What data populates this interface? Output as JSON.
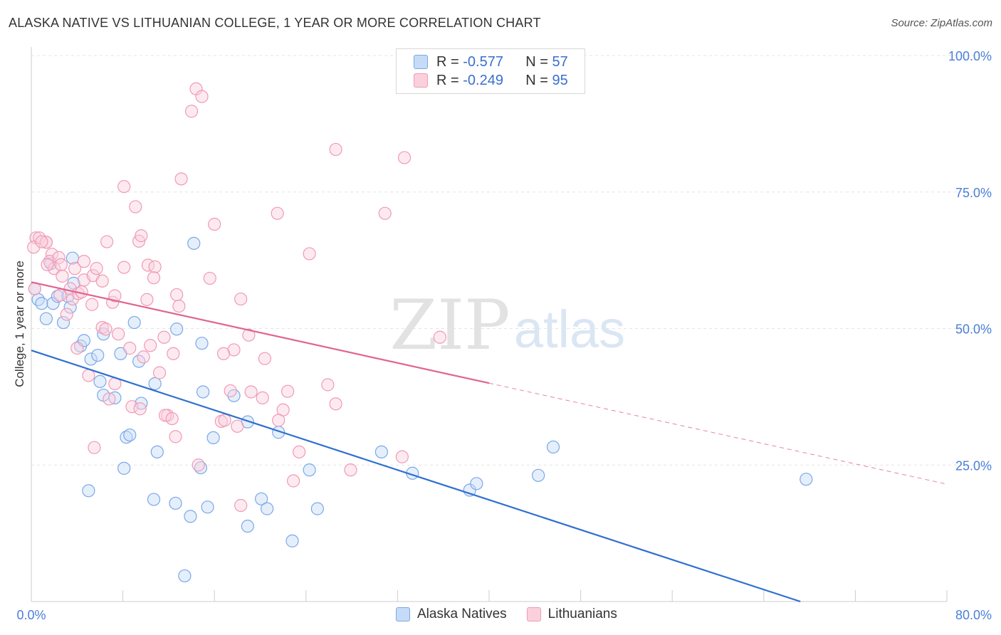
{
  "title": "ALASKA NATIVE VS LITHUANIAN COLLEGE, 1 YEAR OR MORE CORRELATION CHART",
  "source": "Source: ZipAtlas.com",
  "watermark": {
    "zip": "ZIP",
    "atlas": "atlas"
  },
  "legend": {
    "rows": [
      {
        "r_label": "R =",
        "r_value": "-0.577",
        "n_label": "N =",
        "n_value": "57",
        "color": "#7aa8e8"
      },
      {
        "r_label": "R =",
        "r_value": "-0.249",
        "n_label": "N =",
        "n_value": "95",
        "color": "#f09ab4"
      }
    ]
  },
  "bottom_legend": [
    "Alaska Natives",
    "Lithuanians"
  ],
  "chart_data": {
    "type": "scatter",
    "title": "ALASKA NATIVE VS LITHUANIAN COLLEGE, 1 YEAR OR MORE CORRELATION CHART",
    "xlabel": "",
    "ylabel": "College, 1 year or more",
    "xlim": [
      0,
      80
    ],
    "ylim": [
      0,
      100
    ],
    "x_tick_labels": [
      "0.0%",
      "80.0%"
    ],
    "y_tick_labels": [
      "25.0%",
      "50.0%",
      "75.0%",
      "100.0%"
    ],
    "y_ticks": [
      25,
      50,
      75,
      100
    ],
    "grid": true,
    "legend_position": "top-center",
    "series": [
      {
        "name": "Alaska Natives",
        "color": "#7aa8e8",
        "line_color": "#2f6fd0",
        "regression": {
          "x": [
            0,
            67.2
          ],
          "y": [
            46,
            0
          ]
        },
        "points": [
          [
            0.6,
            55.3
          ],
          [
            0.9,
            54.6
          ],
          [
            1.3,
            51.8
          ],
          [
            1.9,
            54.6
          ],
          [
            1.7,
            61.9
          ],
          [
            2.3,
            55.9
          ],
          [
            2.8,
            51.1
          ],
          [
            3.2,
            55.9
          ],
          [
            3.4,
            53.9
          ],
          [
            3.6,
            62.9
          ],
          [
            3.7,
            58.3
          ],
          [
            4.3,
            46.8
          ],
          [
            4.6,
            47.8
          ],
          [
            5.2,
            44.4
          ],
          [
            5.8,
            45.1
          ],
          [
            6.3,
            49.0
          ],
          [
            6.0,
            40.3
          ],
          [
            6.3,
            37.8
          ],
          [
            7.3,
            37.3
          ],
          [
            7.8,
            45.4
          ],
          [
            8.3,
            30.1
          ],
          [
            8.6,
            30.5
          ],
          [
            9.0,
            51.1
          ],
          [
            9.4,
            44.0
          ],
          [
            9.6,
            36.3
          ],
          [
            10.8,
            39.9
          ],
          [
            11.0,
            27.4
          ],
          [
            12.7,
            49.9
          ],
          [
            14.2,
            65.6
          ],
          [
            14.9,
            47.3
          ],
          [
            15.0,
            38.4
          ],
          [
            15.9,
            30.0
          ],
          [
            17.7,
            37.7
          ],
          [
            18.9,
            32.9
          ],
          [
            21.6,
            31.0
          ],
          [
            24.3,
            24.1
          ],
          [
            30.6,
            27.4
          ],
          [
            33.3,
            23.5
          ],
          [
            38.3,
            20.4
          ],
          [
            38.9,
            21.6
          ],
          [
            44.3,
            23.1
          ],
          [
            45.6,
            28.3
          ],
          [
            67.7,
            22.4
          ],
          [
            5.0,
            20.3
          ],
          [
            8.1,
            24.4
          ],
          [
            10.7,
            18.7
          ],
          [
            12.6,
            18.0
          ],
          [
            13.9,
            15.6
          ],
          [
            15.4,
            17.3
          ],
          [
            14.8,
            24.5
          ],
          [
            18.9,
            13.8
          ],
          [
            20.1,
            18.8
          ],
          [
            20.6,
            17.0
          ],
          [
            22.8,
            11.1
          ],
          [
            25.0,
            17.0
          ],
          [
            13.4,
            4.7
          ],
          [
            0.3,
            57.3
          ]
        ]
      },
      {
        "name": "Lithuanians",
        "color": "#f09ab4",
        "line_color": "#e0648f",
        "regression": {
          "x": [
            0,
            40
          ],
          "y": [
            58.5,
            40
          ]
        },
        "regression_dashed": {
          "x": [
            40,
            80
          ],
          "y": [
            40,
            21.5
          ]
        },
        "points": [
          [
            0.4,
            66.6
          ],
          [
            0.7,
            66.6
          ],
          [
            1.3,
            65.8
          ],
          [
            1.3,
            65.8
          ],
          [
            1.8,
            63.6
          ],
          [
            1.6,
            62.3
          ],
          [
            2.4,
            63.0
          ],
          [
            2.0,
            61.0
          ],
          [
            2.6,
            61.7
          ],
          [
            2.7,
            59.6
          ],
          [
            3.1,
            52.6
          ],
          [
            3.6,
            55.4
          ],
          [
            3.4,
            57.3
          ],
          [
            3.8,
            61.0
          ],
          [
            4.1,
            56.4
          ],
          [
            4.4,
            56.7
          ],
          [
            4.6,
            58.9
          ],
          [
            4.6,
            62.3
          ],
          [
            5.3,
            54.4
          ],
          [
            5.4,
            59.7
          ],
          [
            5.7,
            61.0
          ],
          [
            6.2,
            58.7
          ],
          [
            6.2,
            50.2
          ],
          [
            6.5,
            49.9
          ],
          [
            6.6,
            65.9
          ],
          [
            7.1,
            54.8
          ],
          [
            7.3,
            56.0
          ],
          [
            7.6,
            49.0
          ],
          [
            8.1,
            76.0
          ],
          [
            8.1,
            61.2
          ],
          [
            8.6,
            46.4
          ],
          [
            9.1,
            72.3
          ],
          [
            9.4,
            66.0
          ],
          [
            9.6,
            67.0
          ],
          [
            9.8,
            44.8
          ],
          [
            10.2,
            61.6
          ],
          [
            10.4,
            46.9
          ],
          [
            10.1,
            55.3
          ],
          [
            10.8,
            61.3
          ],
          [
            10.7,
            59.3
          ],
          [
            11.2,
            41.9
          ],
          [
            11.6,
            48.4
          ],
          [
            11.9,
            34.1
          ],
          [
            12.4,
            45.4
          ],
          [
            12.7,
            56.2
          ],
          [
            12.9,
            54.1
          ],
          [
            12.6,
            30.2
          ],
          [
            13.1,
            77.4
          ],
          [
            14.0,
            89.8
          ],
          [
            14.4,
            93.9
          ],
          [
            14.9,
            92.5
          ],
          [
            15.6,
            59.2
          ],
          [
            16.0,
            69.1
          ],
          [
            16.6,
            33.0
          ],
          [
            17.4,
            38.6
          ],
          [
            17.7,
            46.1
          ],
          [
            18.3,
            55.4
          ],
          [
            19.0,
            48.8
          ],
          [
            19.2,
            38.4
          ],
          [
            20.2,
            37.3
          ],
          [
            20.4,
            44.5
          ],
          [
            21.5,
            71.1
          ],
          [
            22.0,
            35.1
          ],
          [
            22.4,
            38.5
          ],
          [
            23.4,
            27.4
          ],
          [
            24.3,
            63.7
          ],
          [
            25.9,
            39.7
          ],
          [
            26.6,
            36.2
          ],
          [
            26.6,
            82.8
          ],
          [
            27.9,
            24.1
          ],
          [
            30.9,
            71.1
          ],
          [
            32.4,
            26.5
          ],
          [
            32.6,
            81.3
          ],
          [
            35.7,
            48.4
          ],
          [
            5.0,
            41.4
          ],
          [
            5.5,
            28.2
          ],
          [
            6.8,
            37.1
          ],
          [
            7.3,
            39.9
          ],
          [
            8.8,
            35.7
          ],
          [
            9.5,
            35.3
          ],
          [
            11.7,
            34.1
          ],
          [
            12.3,
            33.5
          ],
          [
            14.6,
            25.0
          ],
          [
            16.9,
            33.2
          ],
          [
            18.0,
            32.1
          ],
          [
            18.3,
            17.6
          ],
          [
            21.6,
            33.2
          ],
          [
            22.9,
            22.1
          ],
          [
            0.2,
            64.9
          ],
          [
            0.3,
            57.3
          ],
          [
            0.9,
            65.9
          ],
          [
            1.4,
            61.7
          ],
          [
            2.5,
            56.1
          ],
          [
            4.0,
            46.4
          ],
          [
            16.8,
            45.4
          ]
        ]
      }
    ]
  }
}
